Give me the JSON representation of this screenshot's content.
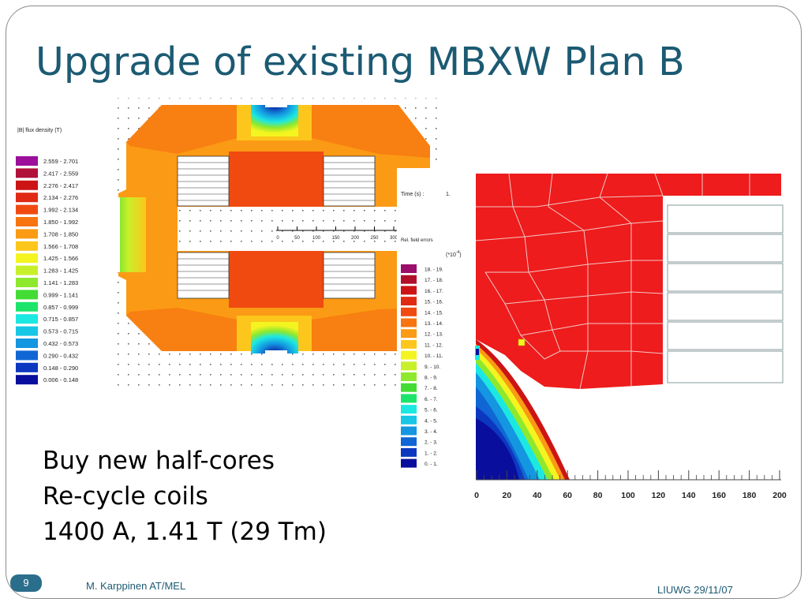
{
  "slide": {
    "title": "Upgrade of existing MBXW Plan B",
    "bullets": [
      "Buy new half-cores",
      "Re-cycle coils",
      "1400 A, 1.41 T (29 Tm)"
    ],
    "slide_number": "9",
    "author": "M. Karppinen AT/MEL",
    "date": "LIUWG 29/11/07"
  },
  "left_figure": {
    "legend_title": "|B| flux density (T)",
    "legend": [
      {
        "range": "2.559 -   2.701",
        "color": "#9b0f9b"
      },
      {
        "range": "2.417 -   2.559",
        "color": "#b0103a"
      },
      {
        "range": "2.276 -   2.417",
        "color": "#cc1414"
      },
      {
        "range": "2.134 -   2.276",
        "color": "#e02a14"
      },
      {
        "range": "1.992 -   2.134",
        "color": "#f04a10"
      },
      {
        "range": "1.850 -   1.992",
        "color": "#f77410"
      },
      {
        "range": "1.708 -   1.850",
        "color": "#fb9a14"
      },
      {
        "range": "1.566 -   1.708",
        "color": "#fcc61c"
      },
      {
        "range": "1.425 -   1.566",
        "color": "#f4f420"
      },
      {
        "range": "1.283 -   1.425",
        "color": "#c8f02a"
      },
      {
        "range": "1.141 -   1.283",
        "color": "#8ee82e"
      },
      {
        "range": "0.999 -   1.141",
        "color": "#44dc34"
      },
      {
        "range": "0.857 -   0.999",
        "color": "#1ce46a"
      },
      {
        "range": "0.715 -   0.857",
        "color": "#1ce8e2"
      },
      {
        "range": "0.573 -   0.715",
        "color": "#18c6e6"
      },
      {
        "range": "0.432 -   0.573",
        "color": "#1496e0"
      },
      {
        "range": "0.290 -   0.432",
        "color": "#1066d4"
      },
      {
        "range": "0.148 -   0.290",
        "color": "#0c38c0"
      },
      {
        "range": "0.006 -   0.148",
        "color": "#0a0e9c"
      }
    ],
    "scale_ticks": [
      "0",
      "50",
      "100",
      "150",
      "200",
      "250",
      "300"
    ]
  },
  "right_figure": {
    "time_label": "Time (s) :",
    "time_value": "1.",
    "errors_label": "Rel. field errors",
    "errors_unit": "(*10",
    "errors_exp": "-4",
    "legend": [
      {
        "range": "18.   -   19.",
        "color": "#9b0f6a"
      },
      {
        "range": "17.   -   18.",
        "color": "#b0102a"
      },
      {
        "range": "16.   -   17.",
        "color": "#cc1414"
      },
      {
        "range": "15.   -   16.",
        "color": "#e02a14"
      },
      {
        "range": "14.   -   15.",
        "color": "#f04a10"
      },
      {
        "range": "13.   -   14.",
        "color": "#f77410"
      },
      {
        "range": "12.   -   13.",
        "color": "#fb9a14"
      },
      {
        "range": "11.   -   12.",
        "color": "#fcc61c"
      },
      {
        "range": "10.   -   11.",
        "color": "#f4f420"
      },
      {
        "range": "9.    -   10.",
        "color": "#c8f02a"
      },
      {
        "range": "8.    -    9.",
        "color": "#8ee82e"
      },
      {
        "range": "7.    -    8.",
        "color": "#44dc34"
      },
      {
        "range": "6.    -    7.",
        "color": "#1ce46a"
      },
      {
        "range": "5.    -    6.",
        "color": "#1ce8e2"
      },
      {
        "range": "4.    -    5.",
        "color": "#18c6e6"
      },
      {
        "range": "3.    -    4.",
        "color": "#1496e0"
      },
      {
        "range": "2.    -    3.",
        "color": "#1066d4"
      },
      {
        "range": "1.    -    2.",
        "color": "#0c38c0"
      },
      {
        "range": "0.    -    1.",
        "color": "#0a0e9c"
      }
    ],
    "x_ticks": [
      "0",
      "20",
      "40",
      "60",
      "80",
      "100",
      "120",
      "140",
      "160",
      "180",
      "200"
    ]
  }
}
